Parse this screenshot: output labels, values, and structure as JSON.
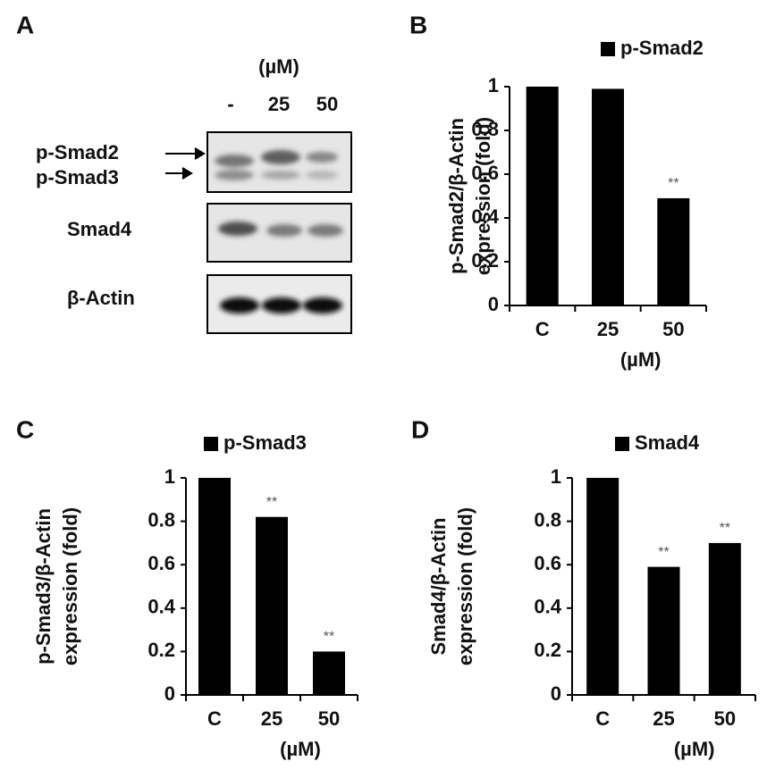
{
  "blot": {
    "panel_label": "A",
    "unit": "(µM)",
    "lanes": [
      "-",
      "25",
      "50"
    ],
    "rows": [
      "p-Smad2",
      "p-Smad3",
      "Smad4",
      "β-Actin"
    ]
  },
  "chart_data": [
    {
      "type": "bar",
      "panel_label": "B",
      "categories": [
        "C",
        "25",
        "50"
      ],
      "xlabel": "(µM)",
      "ylabel": [
        "p-Smad2/β-Actin",
        "expression (fold)"
      ],
      "series": [
        {
          "name": "p-Smad2",
          "color": "#000000",
          "values": [
            1,
            0.99,
            0.49
          ]
        }
      ],
      "annotations": [
        {
          "category": "50",
          "text": "**"
        }
      ],
      "ylim": [
        0,
        1
      ],
      "yticks": [
        0,
        0.2,
        0.4,
        0.6,
        0.8,
        1
      ],
      "grid": false
    },
    {
      "type": "bar",
      "panel_label": "C",
      "categories": [
        "C",
        "25",
        "50"
      ],
      "xlabel": "(µM)",
      "ylabel": [
        "p-Smad3/β-Actin",
        "expression (fold)"
      ],
      "series": [
        {
          "name": "p-Smad3",
          "color": "#000000",
          "values": [
            1,
            0.82,
            0.2
          ]
        }
      ],
      "annotations": [
        {
          "category": "25",
          "text": "**"
        },
        {
          "category": "50",
          "text": "**"
        }
      ],
      "ylim": [
        0,
        1
      ],
      "yticks": [
        0,
        0.2,
        0.4,
        0.6,
        0.8,
        1
      ],
      "grid": false
    },
    {
      "type": "bar",
      "panel_label": "D",
      "categories": [
        "C",
        "25",
        "50"
      ],
      "xlabel": "(µM)",
      "ylabel": [
        "Smad4/β-Actin",
        "expression (fold)"
      ],
      "series": [
        {
          "name": "Smad4",
          "color": "#000000",
          "values": [
            1,
            0.59,
            0.7
          ]
        }
      ],
      "annotations": [
        {
          "category": "25",
          "text": "**"
        },
        {
          "category": "50",
          "text": "**"
        }
      ],
      "ylim": [
        0,
        1
      ],
      "yticks": [
        0,
        0.2,
        0.4,
        0.6,
        0.8,
        1
      ],
      "grid": false
    }
  ]
}
